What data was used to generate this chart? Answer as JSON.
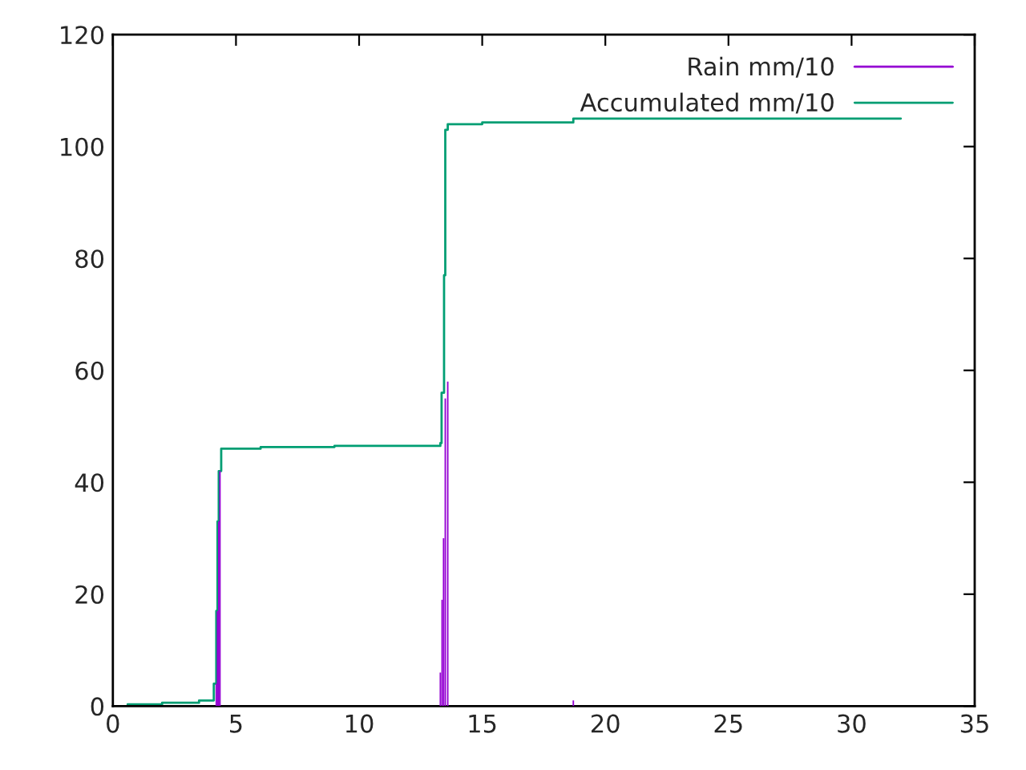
{
  "chart_data": {
    "type": "bar",
    "xlim": [
      0,
      35
    ],
    "xticks": [
      0,
      5,
      10,
      15,
      20,
      25,
      30,
      35
    ],
    "ylim": [
      0,
      120
    ],
    "yticks": [
      0,
      20,
      40,
      60,
      80,
      100,
      120
    ],
    "grid": false,
    "legend": "top right",
    "series": [
      {
        "name": "Rain mm/10",
        "color": "#9400d3",
        "x": [
          4.2,
          4.25,
          4.3,
          4.35,
          13.3,
          13.37,
          13.43,
          13.5,
          13.6,
          18.7
        ],
        "values": [
          4,
          17,
          33,
          42,
          6,
          19,
          30,
          55,
          58,
          1
        ]
      },
      {
        "name": "Accumulated mm/10",
        "type": "step",
        "color": "#009e73",
        "x": [
          0.6,
          2.0,
          3.5,
          4.1,
          4.2,
          4.25,
          4.3,
          4.4,
          6.0,
          9.0,
          13.3,
          13.35,
          13.45,
          13.5,
          13.6,
          15.0,
          18.7,
          32.0
        ],
        "values": [
          0.3,
          0.6,
          1.0,
          4,
          17,
          33,
          42,
          46,
          46.3,
          46.5,
          47,
          56,
          77,
          103,
          104,
          104.3,
          105,
          105
        ]
      }
    ]
  }
}
